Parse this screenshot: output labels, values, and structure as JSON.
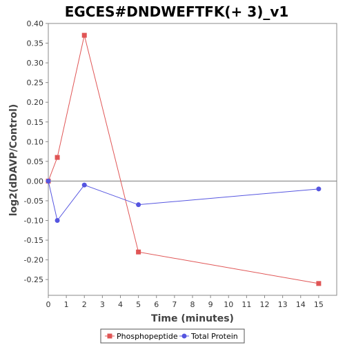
{
  "chart_data": {
    "type": "line",
    "title": "EGCES#DNDWEFTFK(+ 3)_v1",
    "xlabel": "Time (minutes)",
    "ylabel": "log2(dDAVP/Control)",
    "xlim": [
      0,
      16
    ],
    "ylim": [
      -0.29,
      0.4
    ],
    "xticks": [
      0,
      1,
      2,
      3,
      4,
      5,
      6,
      7,
      8,
      9,
      10,
      11,
      12,
      13,
      14,
      15
    ],
    "xtick_labels": [
      "0",
      "1",
      "2",
      "3",
      "4",
      "5",
      "6",
      "7",
      "8",
      "9",
      "10",
      "11",
      "12",
      "13",
      "14",
      "15"
    ],
    "yticks": [
      0.4,
      0.35,
      0.3,
      0.25,
      0.2,
      0.15,
      0.1,
      0.05,
      0.0,
      -0.05,
      -0.1,
      -0.15,
      -0.2,
      -0.25
    ],
    "ytick_labels": [
      "0.40",
      "0.35",
      "0.30",
      "0.25",
      "0.20",
      "0.15",
      "0.10",
      "0.05",
      "0.00",
      "-0.05",
      "-0.10",
      "-0.15",
      "-0.20",
      "-0.25"
    ],
    "grid": false,
    "legend_position": "bottom",
    "series": [
      {
        "name": "Phosphopeptide",
        "color": "#e05555",
        "marker": "square",
        "x": [
          0,
          0.5,
          2,
          5,
          15
        ],
        "y": [
          0.0,
          0.06,
          0.37,
          -0.18,
          -0.26
        ]
      },
      {
        "name": "Total Protein",
        "color": "#5555e0",
        "marker": "circle",
        "x": [
          0,
          0.5,
          2,
          5,
          15
        ],
        "y": [
          0.0,
          -0.1,
          -0.01,
          -0.06,
          -0.02
        ]
      }
    ]
  }
}
